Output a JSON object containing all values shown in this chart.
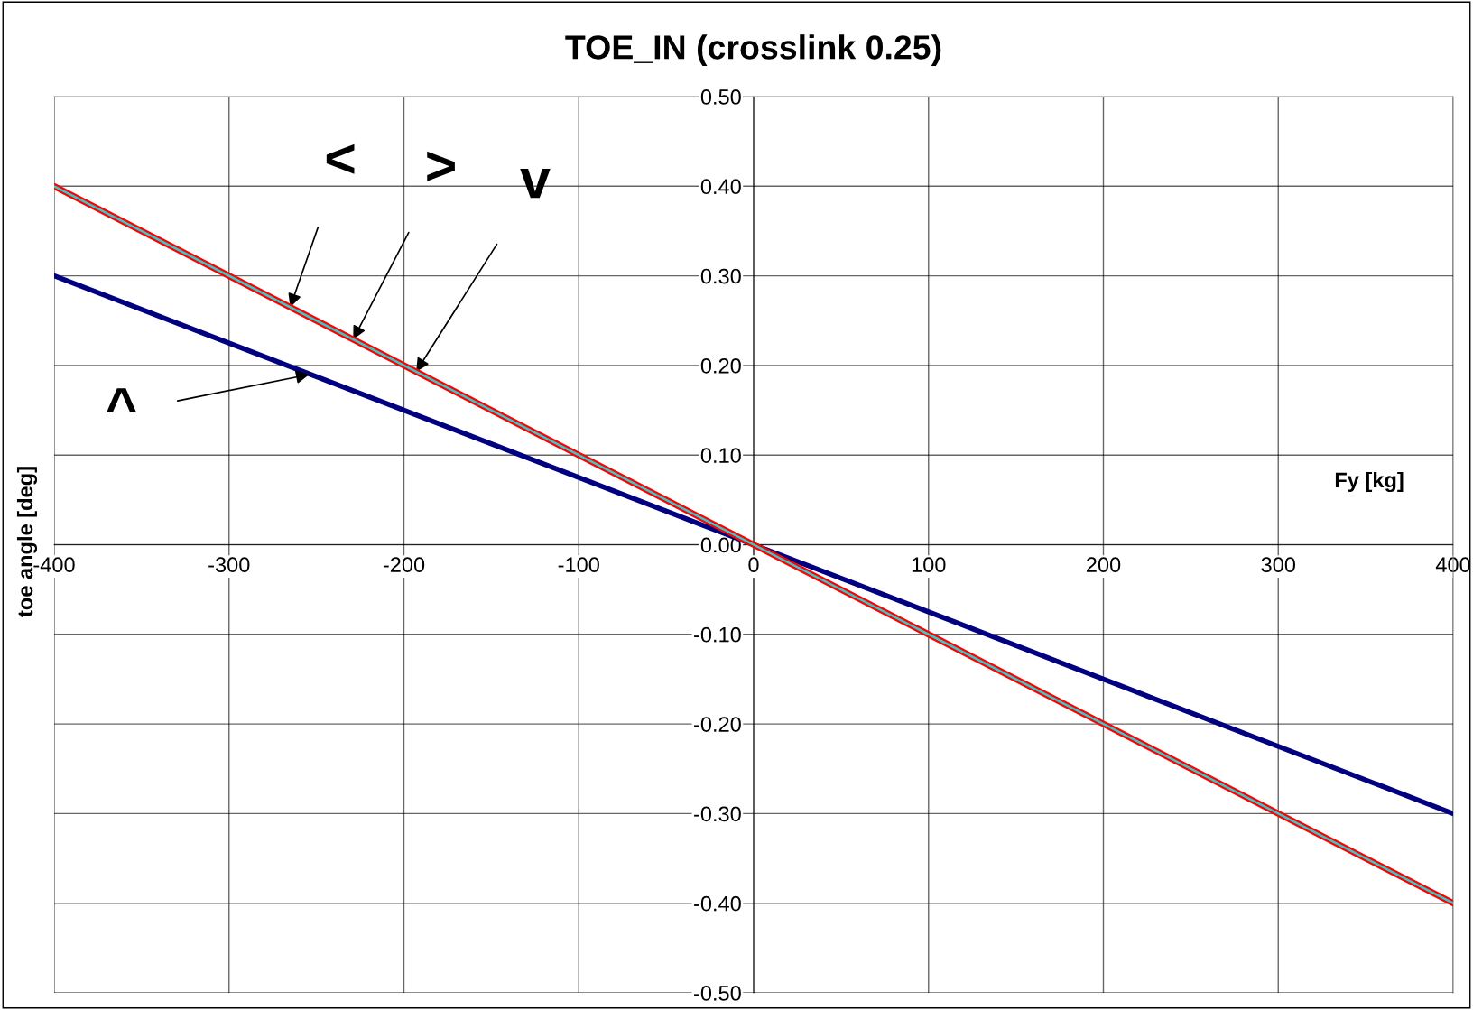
{
  "chart_data": {
    "type": "line",
    "title": "TOE_IN (crosslink 0.25)",
    "xlabel": "Fy [kg]",
    "ylabel": "toe angle [deg]",
    "x": [
      -400,
      0,
      400
    ],
    "series": [
      {
        "color": "#000080",
        "values": [
          0.3,
          0.0,
          -0.3
        ]
      },
      {
        "color": "#ff0000",
        "values": [
          0.4,
          0.0,
          -0.4
        ]
      },
      {
        "color": "#33cccc",
        "values": [
          0.4,
          0.0,
          -0.4
        ]
      }
    ],
    "xlim": [
      -400,
      400
    ],
    "xticks": [
      -400,
      -300,
      -200,
      -100,
      0,
      100,
      200,
      300,
      400
    ],
    "ylim": [
      -0.5,
      0.5
    ],
    "yticks": [
      {
        "value": -0.5,
        "label": "-0.50"
      },
      {
        "value": -0.4,
        "label": "-0.40"
      },
      {
        "value": -0.3,
        "label": "-0.30"
      },
      {
        "value": -0.2,
        "label": "-0.20"
      },
      {
        "value": -0.1,
        "label": "-0.10"
      },
      {
        "value": 0,
        "label": "0.00"
      },
      {
        "value": 0.1,
        "label": "0.10"
      },
      {
        "value": 0.2,
        "label": "0.20"
      },
      {
        "value": 0.3,
        "label": "0.30"
      },
      {
        "value": 0.4,
        "label": "0.40"
      },
      {
        "value": 0.5,
        "label": "0.50"
      }
    ],
    "grid": true,
    "annotations": [
      {
        "text": "<",
        "x": -265,
        "y": 0.265
      },
      {
        "text": ">",
        "x": -229,
        "y": 0.229
      },
      {
        "text": "v",
        "x": -193,
        "y": 0.193
      },
      {
        "text": "^",
        "x": -254,
        "y": 0.19
      }
    ]
  }
}
